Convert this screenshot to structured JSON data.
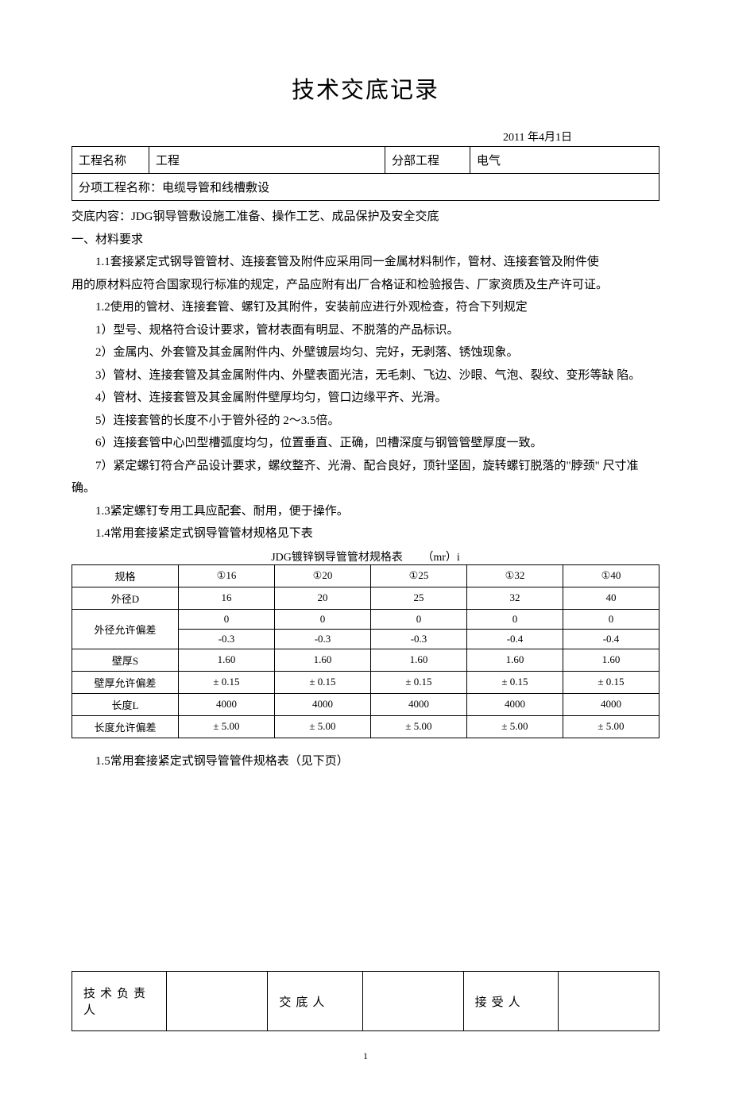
{
  "title": "技术交底记录",
  "date": "2011 年4月1日",
  "header": {
    "project_label": "工程名称",
    "project_value": "工程",
    "section_label": "分部工程",
    "section_value": "电气",
    "subitem_full": "分项工程名称：电缆导管和线槽敷设"
  },
  "disclosure_line": "交底内容：JDG钢导管敷设施工准备、操作工艺、成品保护及安全交底",
  "section1_heading": "一、材料要求",
  "para_1_1a": "1.1套接紧定式钢导管管材、连接套管及附件应采用同一金属材料制作，管材、连接套管及附件使",
  "para_1_1b": "用的原材料应符合国家现行标准的规定，产品应附有出厂合格证和检验报告、厂家资质及生产许可证。",
  "para_1_2": "1.2使用的管材、连接套管、螺钉及其附件，安装前应进行外观检查，符合下列规定",
  "bullet_1": "1）型号、规格符合设计要求，管材表面有明显、不脱落的产品标识。",
  "bullet_2": "2）金属内、外套管及其金属附件内、外壁镀层均匀、完好，无剥落、锈蚀现象。",
  "bullet_3": "3）管材、连接套管及其金属附件内、外壁表面光洁，无毛刺、飞边、沙眼、气泡、裂纹、变形等缺 陷。",
  "bullet_4": "4）管材、连接套管及其金属附件壁厚均匀，管口边缘平齐、光滑。",
  "bullet_5": "5）连接套管的长度不小于管外径的 2～3.5倍。",
  "bullet_6": "6）连接套管中心凹型槽弧度均匀，位置垂直、正确，凹槽深度与钢管管壁厚度一致。",
  "bullet_7": "7）紧定螺钉符合产品设计要求，螺纹整齐、光滑、配合良好，顶针坚固，旋转螺钉脱落的\"脖颈\"   尺寸准确。",
  "para_1_3": "1.3紧定螺钉专用工具应配套、耐用，便于操作。",
  "para_1_4": "1.4常用套接紧定式钢导管管材规格见下表",
  "spec_table": {
    "caption": "JDG镀锌钢导管管材规格表       （mr）i",
    "columns": [
      "规格",
      "①16",
      "①20",
      "①25",
      "①32",
      "①40"
    ],
    "rows": [
      [
        "外径D",
        "16",
        "20",
        "25",
        "32",
        "40"
      ],
      [
        "外径允许偏差",
        "0",
        "0",
        "0",
        "0",
        "0"
      ],
      [
        "",
        "-0.3",
        "-0.3",
        "-0.3",
        "-0.4",
        "-0.4"
      ],
      [
        "壁厚S",
        "1.60",
        "1.60",
        "1.60",
        "1.60",
        "1.60"
      ],
      [
        "壁厚允许偏差",
        "± 0.15",
        "± 0.15",
        "± 0.15",
        "± 0.15",
        "± 0.15"
      ],
      [
        "长度L",
        "4000",
        "4000",
        "4000",
        "4000",
        "4000"
      ],
      [
        "长度允许偏差",
        "± 5.00",
        "± 5.00",
        "± 5.00",
        "± 5.00",
        "± 5.00"
      ]
    ]
  },
  "para_1_5": "1.5常用套接紧定式钢导管管件规格表（见下页）",
  "sign": {
    "tech_lead_label": "技术负责人",
    "tech_lead_value": "",
    "discloser_label": "交底人",
    "discloser_value": "",
    "receiver_label": "接受人",
    "receiver_value": ""
  },
  "page_number": "1"
}
